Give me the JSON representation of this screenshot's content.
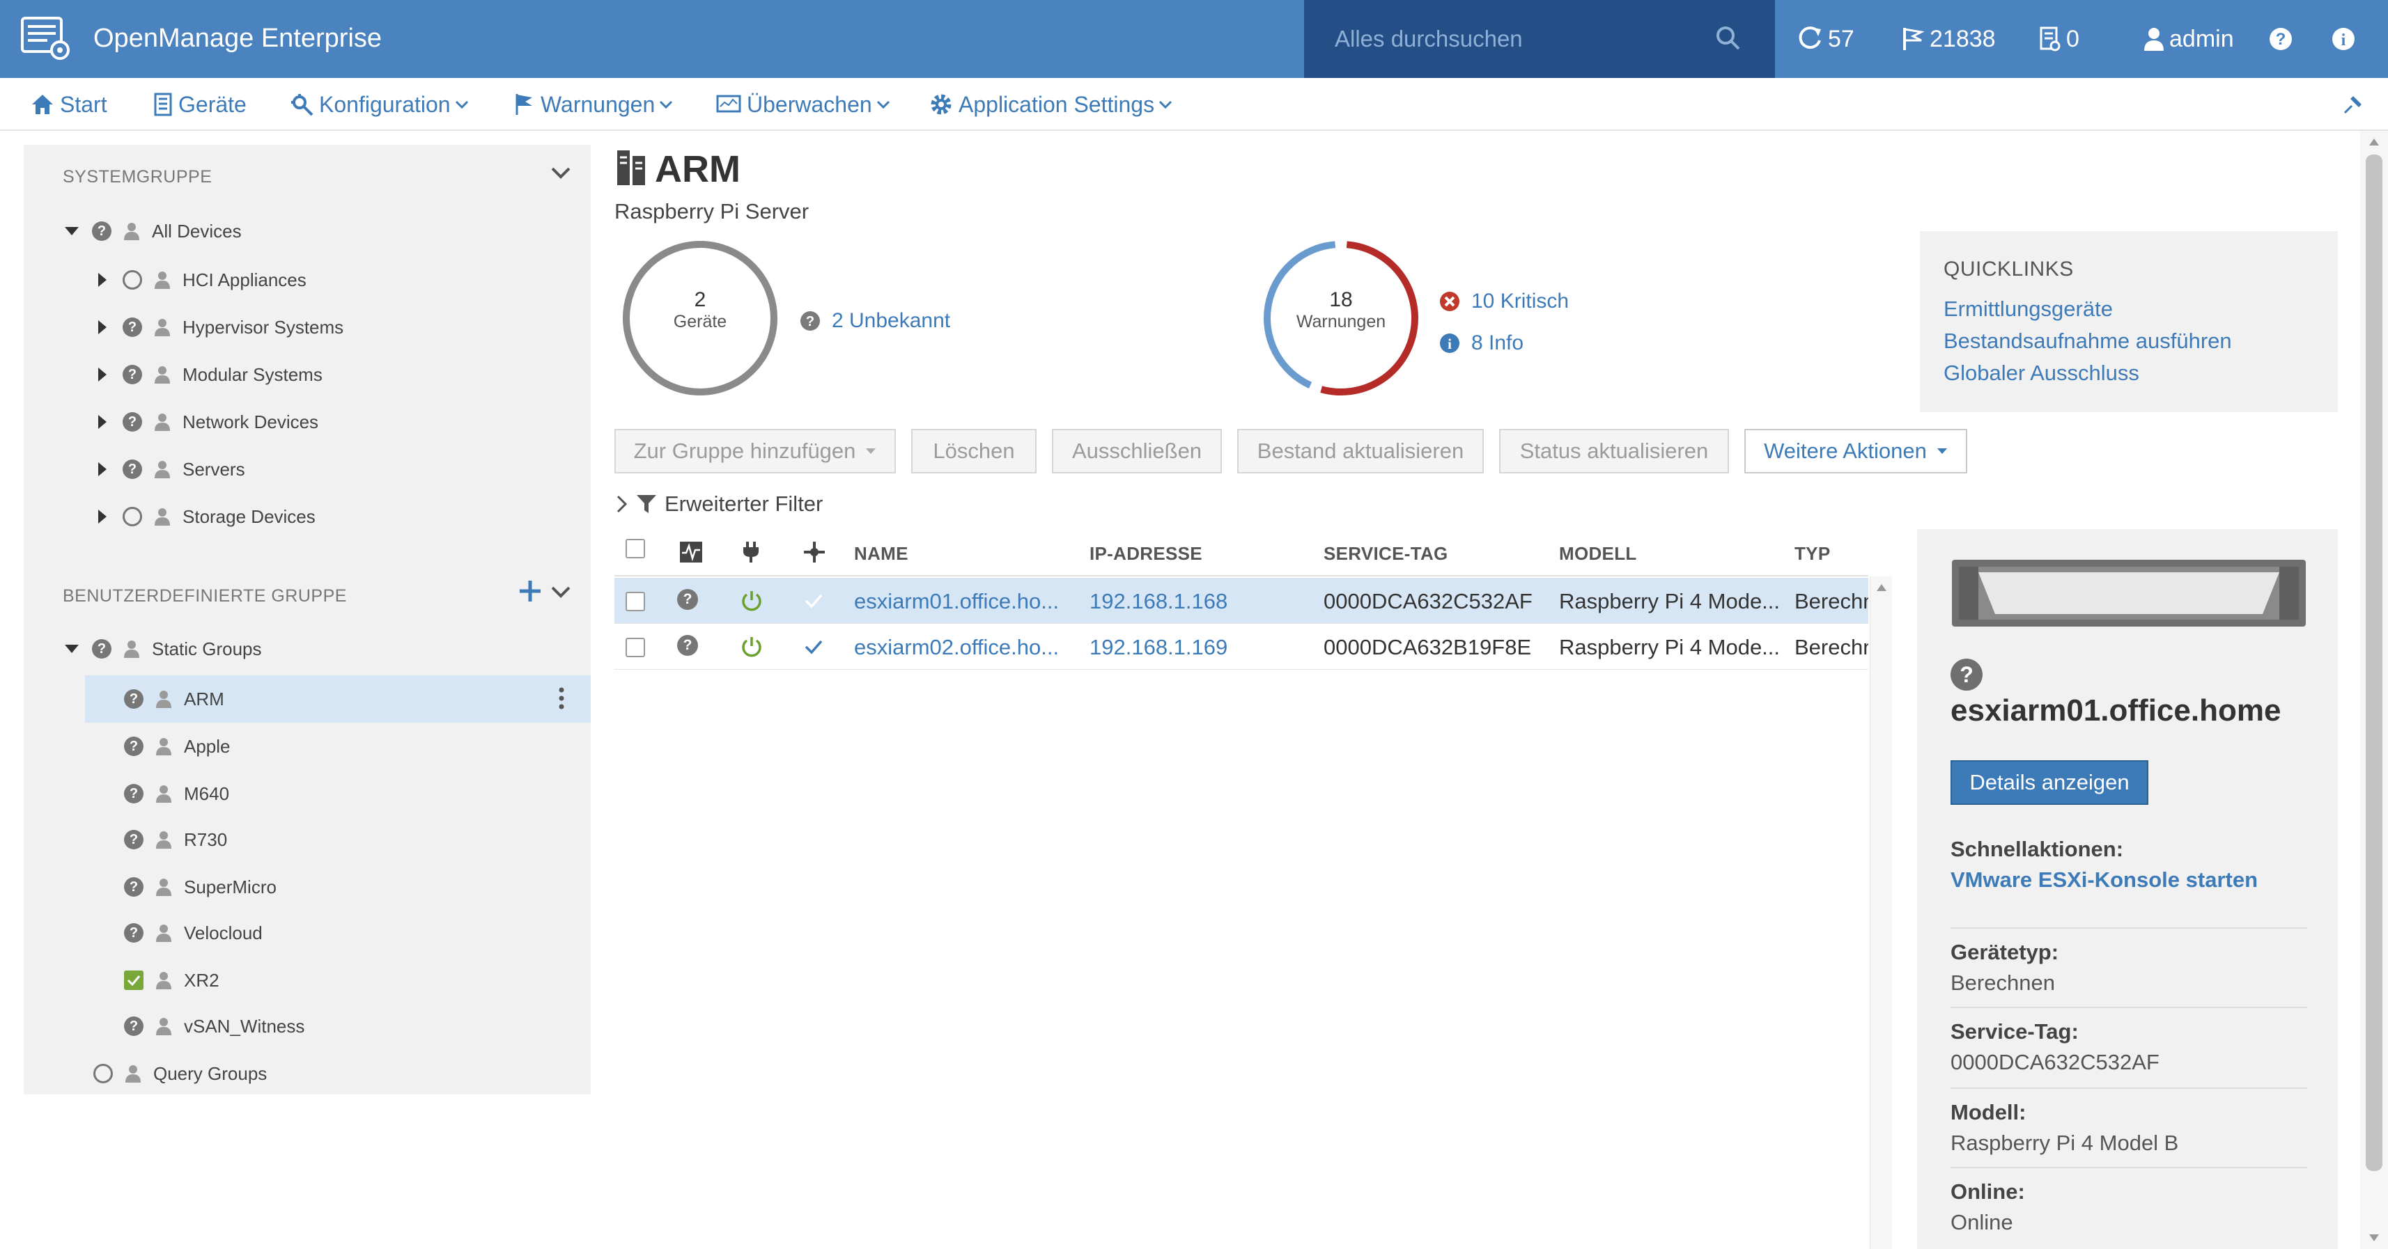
{
  "app": {
    "title": "OpenManage Enterprise"
  },
  "search": {
    "placeholder": "Alles durchsuchen"
  },
  "topstats": {
    "jobs": "57",
    "alerts": "21838",
    "tickets": "0",
    "user": "admin"
  },
  "nav": {
    "start": "Start",
    "devices": "Geräte",
    "config": "Konfiguration",
    "alerts": "Warnungen",
    "monitor": "Überwachen",
    "settings": "Application Settings"
  },
  "sidebar": {
    "system_header": "SYSTEMGRUPPE",
    "all_devices": "All Devices",
    "system_groups": [
      "HCI Appliances",
      "Hypervisor Systems",
      "Modular Systems",
      "Network Devices",
      "Servers",
      "Storage Devices"
    ],
    "custom_header": "BENUTZERDEFINIERTE GRUPPE",
    "static_groups": "Static Groups",
    "static_children": [
      "ARM",
      "Apple",
      "M640",
      "R730",
      "SuperMicro",
      "Velocloud",
      "XR2",
      "vSAN_Witness"
    ],
    "query_groups": "Query Groups"
  },
  "page": {
    "title": "ARM",
    "subtitle": "Raspberry Pi Server"
  },
  "summary": {
    "devices": {
      "count": "2",
      "label": "Geräte",
      "unknown": "2 Unbekannt"
    },
    "alerts": {
      "count": "18",
      "label": "Warnungen",
      "critical": "10 Kritisch",
      "info": "8 Info",
      "critical_value": 10,
      "info_value": 8
    },
    "colors": {
      "critical": "#b52b27",
      "info": "#6a9bcf",
      "neutral": "#8a8a8a"
    }
  },
  "quicklinks": {
    "title": "QUICKLINKS",
    "links": [
      "Ermittlungsgeräte",
      "Bestandsaufnahme ausführen",
      "Globaler Ausschluss"
    ]
  },
  "toolbar": {
    "add_group": "Zur Gruppe hinzufügen",
    "delete": "Löschen",
    "exclude": "Ausschließen",
    "refresh_inventory": "Bestand aktualisieren",
    "refresh_status": "Status aktualisieren",
    "more_actions": "Weitere Aktionen"
  },
  "filter": {
    "label": "Erweiterter Filter"
  },
  "table": {
    "headers": {
      "name": "NAME",
      "ip": "IP-ADRESSE",
      "service_tag": "SERVICE-TAG",
      "model": "MODELL",
      "type": "TYP"
    },
    "rows": [
      {
        "name": "esxiarm01.office.ho...",
        "ip": "192.168.1.168",
        "service_tag": "0000DCA632C532AF",
        "model": "Raspberry Pi 4 Mode...",
        "type": "Berechn"
      },
      {
        "name": "esxiarm02.office.ho...",
        "ip": "192.168.1.169",
        "service_tag": "0000DCA632B19F8E",
        "model": "Raspberry Pi 4 Mode...",
        "type": "Berechn"
      }
    ]
  },
  "detail": {
    "name": "esxiarm01.office.home",
    "details_button": "Details anzeigen",
    "quick_actions_label": "Schnellaktionen:",
    "quick_action_link": "VMware ESXi-Konsole starten",
    "device_type_label": "Gerätetyp:",
    "device_type": "Berechnen",
    "service_tag_label": "Service-Tag:",
    "service_tag": "0000DCA632C532AF",
    "model_label": "Modell:",
    "model": "Raspberry Pi 4 Model B",
    "online_label": "Online:",
    "online": "Online"
  }
}
